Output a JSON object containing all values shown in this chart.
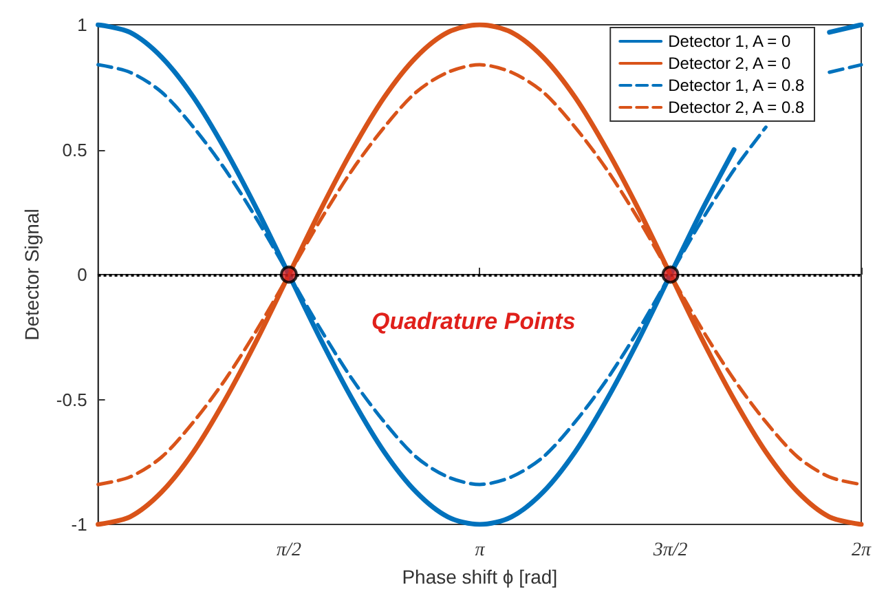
{
  "chart_data": {
    "type": "line",
    "xlabel": "Phase shift ϕ [rad]",
    "ylabel": "Detector Signal",
    "x": [
      0,
      0.262,
      0.524,
      0.785,
      1.047,
      1.309,
      1.571,
      1.833,
      2.094,
      2.356,
      2.618,
      2.88,
      3.142,
      3.403,
      3.665,
      3.927,
      4.189,
      4.451,
      4.712,
      4.974,
      5.236,
      5.498,
      5.76,
      6.021,
      6.283
    ],
    "series": [
      {
        "name": "Detector 1, A = 0",
        "color": "#0072bd",
        "line_style": "solid",
        "values": [
          1,
          0.97,
          0.87,
          0.71,
          0.5,
          0.26,
          0,
          -0.26,
          -0.5,
          -0.71,
          -0.87,
          -0.97,
          -1,
          -0.97,
          -0.87,
          -0.71,
          -0.5,
          -0.26,
          0,
          0.26,
          0.5,
          null,
          null,
          0.97,
          1
        ]
      },
      {
        "name": "Detector 2, A = 0",
        "color": "#d95319",
        "line_style": "solid",
        "values": [
          -1,
          -0.97,
          -0.87,
          -0.71,
          -0.5,
          -0.26,
          0,
          0.26,
          0.5,
          0.71,
          0.87,
          0.97,
          1,
          0.97,
          0.87,
          0.71,
          0.5,
          0.26,
          0,
          -0.26,
          -0.5,
          -0.71,
          -0.87,
          -0.97,
          -1
        ]
      },
      {
        "name": "Detector 1, A = 0.8",
        "color": "#0072bd",
        "line_style": "dashed",
        "values": [
          0.84,
          0.81,
          0.73,
          0.59,
          0.42,
          0.22,
          0,
          -0.22,
          -0.42,
          -0.59,
          -0.73,
          -0.81,
          -0.84,
          -0.81,
          -0.73,
          -0.59,
          -0.42,
          -0.22,
          0,
          0.22,
          0.42,
          0.59,
          null,
          0.81,
          0.84
        ]
      },
      {
        "name": "Detector 2, A = 0.8",
        "color": "#d95319",
        "line_style": "dashed",
        "values": [
          -0.84,
          -0.81,
          -0.73,
          -0.59,
          -0.42,
          -0.22,
          0,
          0.22,
          0.42,
          0.59,
          0.73,
          0.81,
          0.84,
          0.81,
          0.73,
          0.59,
          0.42,
          0.22,
          0,
          -0.22,
          -0.42,
          -0.59,
          -0.73,
          -0.81,
          -0.84
        ]
      },
      {
        "type": "scatter",
        "color": "#d62020",
        "marker": "circle",
        "x": [
          1.571,
          4.712
        ],
        "values": [
          0,
          0
        ]
      }
    ],
    "xlim": [
      0,
      6.283
    ],
    "xticks": [
      {
        "value": 1.571,
        "label": "π/2"
      },
      {
        "value": 3.142,
        "label": "π"
      },
      {
        "value": 4.712,
        "label": "3π/2"
      },
      {
        "value": 6.283,
        "label": "2π"
      }
    ],
    "ylim": [
      -1,
      1
    ],
    "yticks": [
      -1,
      -0.5,
      0,
      0.5,
      1
    ],
    "ref_lines": [
      {
        "axis": "y",
        "value": 0,
        "color": "#000000",
        "line_style": "dotted"
      }
    ],
    "annotations": [
      "Quadrature Points"
    ],
    "legend": "top right",
    "grid": false,
    "marker": "none"
  }
}
